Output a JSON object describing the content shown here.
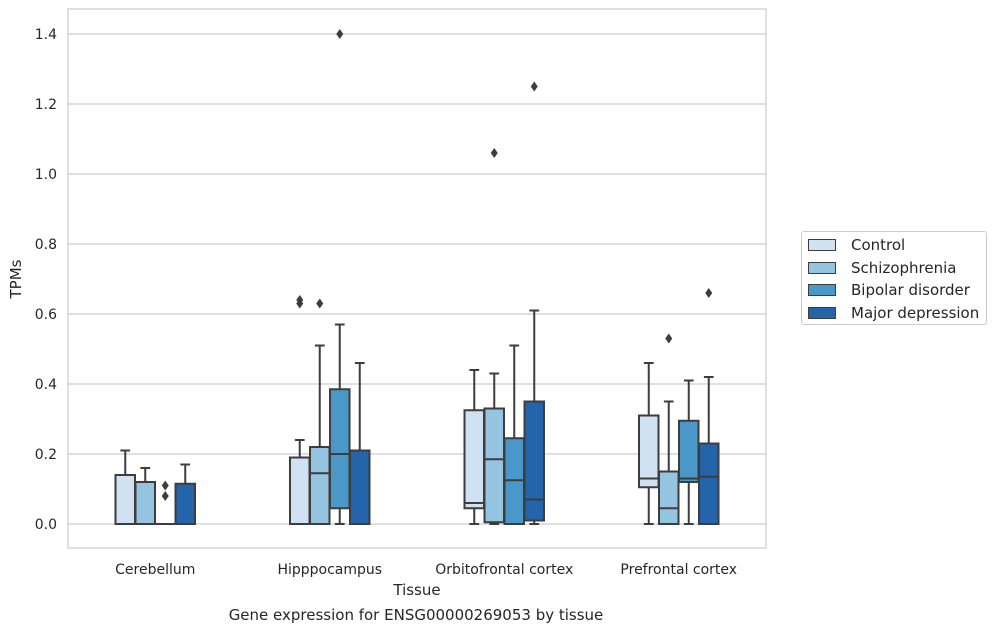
{
  "chart_data": {
    "type": "box",
    "title": "",
    "xlabel": "Tissue",
    "ylabel": "TPMs",
    "caption": "Gene expression for ENSG00000269053 by tissue",
    "ylim": [
      -0.07,
      1.47
    ],
    "yticks": [
      "0.0",
      "0.2",
      "0.4",
      "0.6",
      "0.8",
      "1.0",
      "1.2",
      "1.4"
    ],
    "categories": [
      "Cerebellum",
      "Hipppocampus",
      "Orbitofrontal cortex",
      "Prefrontal cortex"
    ],
    "grid": "horizontal",
    "legend_position": "right",
    "series": [
      {
        "name": "Control",
        "color": "#d0e1f2",
        "boxes": [
          {
            "min": 0.0,
            "q1": 0.0,
            "median": 0.0,
            "q3": 0.14,
            "max": 0.21,
            "outliers": []
          },
          {
            "min": 0.0,
            "q1": 0.0,
            "median": 0.0,
            "q3": 0.19,
            "max": 0.24,
            "outliers": [
              0.63,
              0.64
            ]
          },
          {
            "min": 0.0,
            "q1": 0.045,
            "median": 0.06,
            "q3": 0.325,
            "max": 0.44,
            "outliers": []
          },
          {
            "min": 0.0,
            "q1": 0.105,
            "median": 0.13,
            "q3": 0.31,
            "max": 0.46,
            "outliers": []
          }
        ]
      },
      {
        "name": "Schizophrenia",
        "color": "#94c4df",
        "boxes": [
          {
            "min": 0.0,
            "q1": 0.0,
            "median": 0.0,
            "q3": 0.12,
            "max": 0.16,
            "outliers": []
          },
          {
            "min": 0.0,
            "q1": 0.0,
            "median": 0.145,
            "q3": 0.22,
            "max": 0.51,
            "outliers": [
              0.63
            ]
          },
          {
            "min": 0.0,
            "q1": 0.005,
            "median": 0.185,
            "q3": 0.33,
            "max": 0.43,
            "outliers": [
              1.06
            ]
          },
          {
            "min": 0.0,
            "q1": 0.0,
            "median": 0.045,
            "q3": 0.15,
            "max": 0.35,
            "outliers": [
              0.53
            ]
          }
        ]
      },
      {
        "name": "Bipolar disorder",
        "color": "#4a98c9",
        "boxes": [
          {
            "min": 0.0,
            "q1": 0.0,
            "median": 0.0,
            "q3": 0.0,
            "max": 0.0,
            "outliers": [
              0.08,
              0.11
            ]
          },
          {
            "min": 0.0,
            "q1": 0.045,
            "median": 0.2,
            "q3": 0.385,
            "max": 0.57,
            "outliers": [
              1.4
            ]
          },
          {
            "min": 0.0,
            "q1": 0.0,
            "median": 0.125,
            "q3": 0.245,
            "max": 0.51,
            "outliers": []
          },
          {
            "min": 0.0,
            "q1": 0.12,
            "median": 0.13,
            "q3": 0.295,
            "max": 0.41,
            "outliers": []
          }
        ]
      },
      {
        "name": "Major depression",
        "color": "#2364aa",
        "boxes": [
          {
            "min": 0.0,
            "q1": 0.0,
            "median": 0.0,
            "q3": 0.115,
            "max": 0.17,
            "outliers": []
          },
          {
            "min": 0.0,
            "q1": 0.0,
            "median": 0.0,
            "q3": 0.21,
            "max": 0.46,
            "outliers": []
          },
          {
            "min": 0.0,
            "q1": 0.01,
            "median": 0.07,
            "q3": 0.35,
            "max": 0.61,
            "outliers": [
              1.25
            ]
          },
          {
            "min": 0.0,
            "q1": 0.0,
            "median": 0.135,
            "q3": 0.23,
            "max": 0.42,
            "outliers": [
              0.66
            ]
          }
        ]
      }
    ]
  }
}
